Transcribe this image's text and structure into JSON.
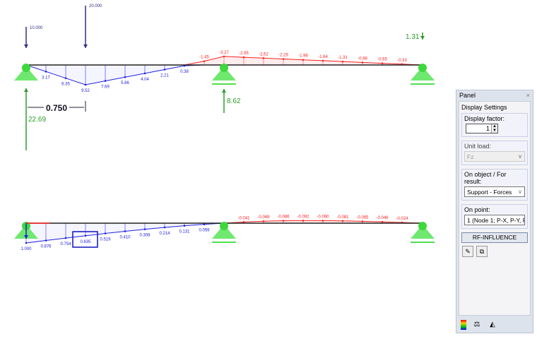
{
  "colors": {
    "positive": "#2020e0",
    "negative": "#ff2020",
    "reaction": "#2a9a2a",
    "load": "#303080",
    "support": "#6fe86f"
  },
  "top_diagram": {
    "loads": [
      {
        "label": "10.000"
      },
      {
        "label": "20.000"
      }
    ],
    "positive_values": [
      "3.17",
      "6.35",
      "9.52",
      "7.69",
      "5.86",
      "4.04",
      "2.21",
      "0.38"
    ],
    "negative_values": [
      "-1.45",
      "-3.27",
      "-2.95",
      "-2.62",
      "-2.29",
      "-1.96",
      "-1.64",
      "-1.31",
      "-0.98",
      "-0.65",
      "-0.33"
    ],
    "reactions": {
      "left": "22.69",
      "middle": "8.62",
      "right": "1.31"
    },
    "dimension": "0.750"
  },
  "bottom_diagram": {
    "positive_values": [
      "1.000",
      "0.876",
      "0.754",
      "0.635",
      "0.519",
      "0.410",
      "0.308",
      "0.214",
      "0.131",
      "0.059"
    ],
    "negative_values": [
      "-0.041",
      "-0.069",
      "-0.086",
      "-0.092",
      "-0.090",
      "-0.081",
      "-0.065",
      "-0.046",
      "-0.024"
    ],
    "highlighted": "0.635"
  },
  "panel": {
    "title": "Panel",
    "close": "×",
    "section": "Display Settings",
    "display_factor_label": "Display factor:",
    "display_factor": "1",
    "unit_load_label": "Unit load:",
    "unit_load": "Fz",
    "object_label": "On object / For result:",
    "object": "Support - Forces",
    "point_label": "On point:",
    "point": "1 (Node 1; P-X, P-Y, P-",
    "button": "RF-INFLUENCE",
    "icons": [
      "edit-icon",
      "copy-icon"
    ],
    "footer_icons": [
      "color-scale-icon",
      "balance-icon",
      "measure-icon"
    ]
  }
}
